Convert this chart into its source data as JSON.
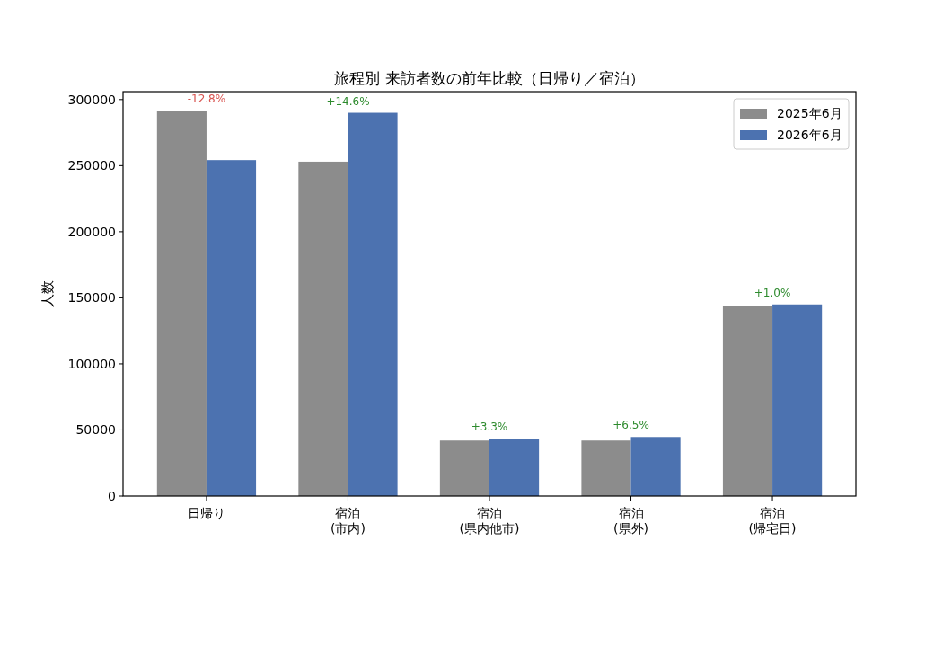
{
  "chart_data": {
    "type": "bar",
    "title": "旅程別 来訪者数の前年比較（日帰り／宿泊）",
    "ylabel": "人数",
    "categories": [
      "日帰り",
      "宿泊\n(市内)",
      "宿泊\n(県内他市)",
      "宿泊\n(県外)",
      "宿泊\n(帰宅日)"
    ],
    "series": [
      {
        "name": "2025年6月",
        "color": "#8c8c8c",
        "values": [
          291500,
          253000,
          42000,
          42000,
          143500
        ]
      },
      {
        "name": "2026年6月",
        "color": "#4c72b0",
        "values": [
          254200,
          290000,
          43400,
          44700,
          145000
        ]
      }
    ],
    "ylim": [
      0,
      306000
    ],
    "yticks": [
      0,
      50000,
      100000,
      150000,
      200000,
      250000,
      300000
    ],
    "legend": "top right",
    "grid": false,
    "annotations": [
      {
        "text": "-12.8%",
        "x": "日帰り",
        "y": 291500
      },
      {
        "text": "+14.6%",
        "x": "宿泊\n(市内)",
        "y": 290000
      },
      {
        "text": "+3.3%",
        "x": "宿泊\n(県内他市)",
        "y": 43400
      },
      {
        "text": "+6.5%",
        "x": "宿泊\n(県外)",
        "y": 44700
      },
      {
        "text": "+1.0%",
        "x": "宿泊\n(帰宅日)",
        "y": 145000
      }
    ]
  }
}
